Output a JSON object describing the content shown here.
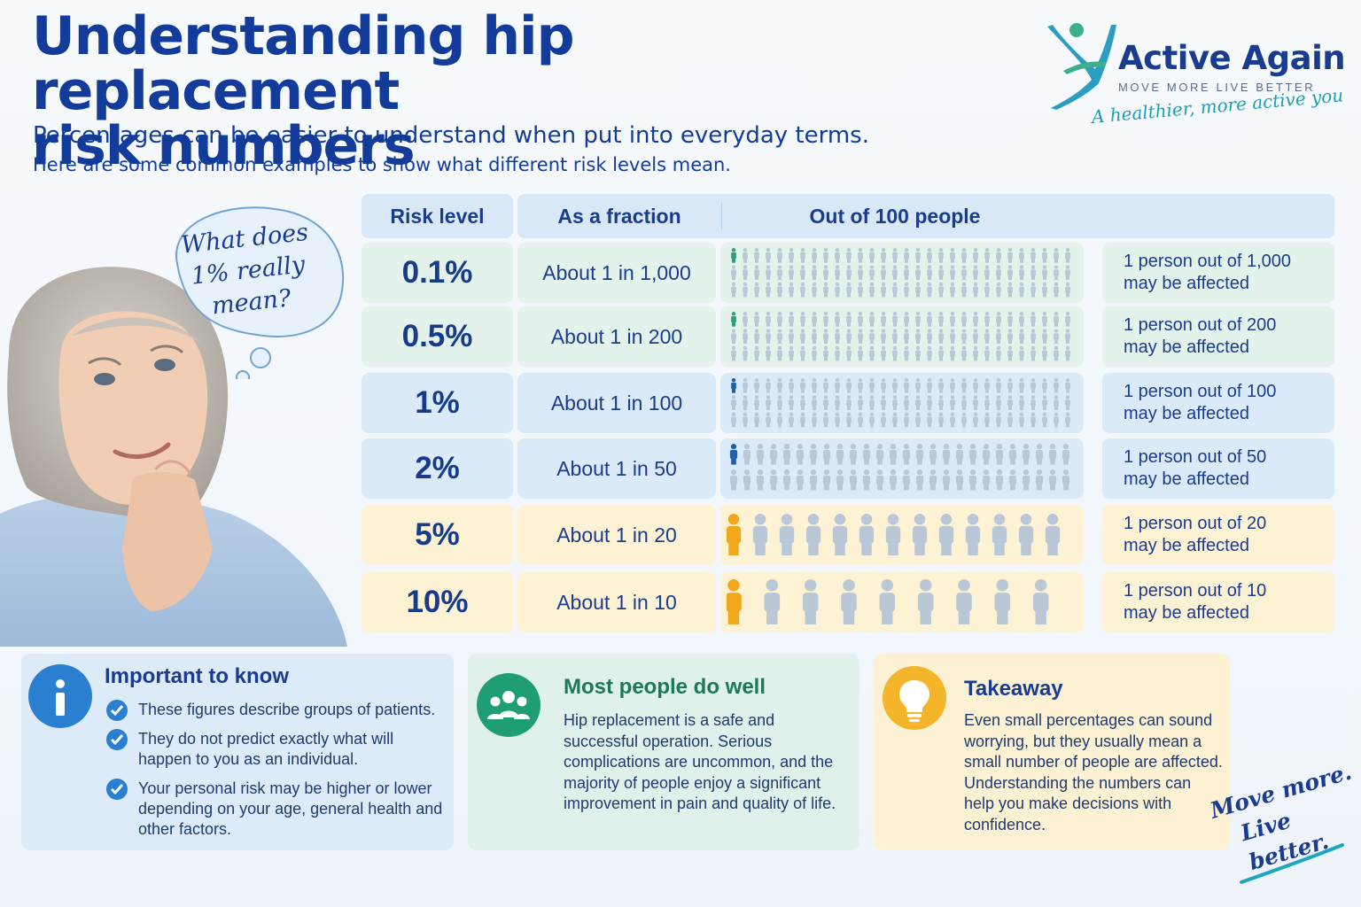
{
  "header": {
    "title_line1": "Understanding hip replacement",
    "title_line2": "risk numbers",
    "subtitle1": "Percentages can be easier to understand when put into everyday terms.",
    "subtitle2": "Here are some common examples to show what different risk levels mean."
  },
  "brand": {
    "name": "Active Again",
    "tagline": "MOVE MORE   LIVE BETTER",
    "slogan": "A healthier, more active you"
  },
  "bubble": {
    "line1": "What does",
    "line2": "1% really",
    "line3": "mean?"
  },
  "table": {
    "headers": {
      "level": "Risk level",
      "fraction": "As a fraction",
      "people": "Out of 100 people"
    },
    "rows": [
      {
        "level": "0.1%",
        "fraction": "About 1 in 1,000",
        "desc1": "1 person out of 1,000",
        "desc2": "may be affected",
        "affected": 1,
        "total": 1000
      },
      {
        "level": "0.5%",
        "fraction": "About 1 in 200",
        "desc1": "1 person out of 200",
        "desc2": "may be affected",
        "affected": 1,
        "total": 200
      },
      {
        "level": "1%",
        "fraction": "About 1 in 100",
        "desc1": "1 person out of 100",
        "desc2": "may be affected",
        "affected": 1,
        "total": 100
      },
      {
        "level": "2%",
        "fraction": "About 1 in 50",
        "desc1": "1 person out of 50",
        "desc2": "may be affected",
        "affected": 1,
        "total": 50
      },
      {
        "level": "5%",
        "fraction": "About 1 in 20",
        "desc1": "1 person out of 20",
        "desc2": "may be affected",
        "affected": 1,
        "total": 20
      },
      {
        "level": "10%",
        "fraction": "About 1 in 10",
        "desc1": "1 person out of 10",
        "desc2": "may be affected",
        "affected": 1,
        "total": 10
      }
    ]
  },
  "panels": {
    "important": {
      "title": "Important to know",
      "items": [
        "These figures describe groups of patients.",
        "They do not predict exactly what will happen to you as an individual.",
        "Your personal risk may be higher or lower depending on your age, general health and other factors."
      ]
    },
    "well": {
      "title": "Most people do well",
      "body": "Hip replacement is a safe and successful operation. Serious complications are uncommon, and the majority of people enjoy a significant improvement in pain and quality of life."
    },
    "takeaway": {
      "title": "Takeaway",
      "body": "Even small percentages can sound worrying, but they usually mean a small number of people are affected. Understanding the numbers can help you make decisions with confidence."
    }
  },
  "signoff": {
    "line1": "Move more.",
    "line2": "Live better."
  },
  "colors": {
    "title": "#123b9a",
    "green_row": "#e3f2ea",
    "blue_row": "#dbeaf8",
    "yellow_row": "#fdf2d4",
    "green_person": "#2aa37a",
    "blue_person": "#1f5fb0",
    "yellow_person": "#f2a81c",
    "grey_person": "#b9c7d6"
  }
}
